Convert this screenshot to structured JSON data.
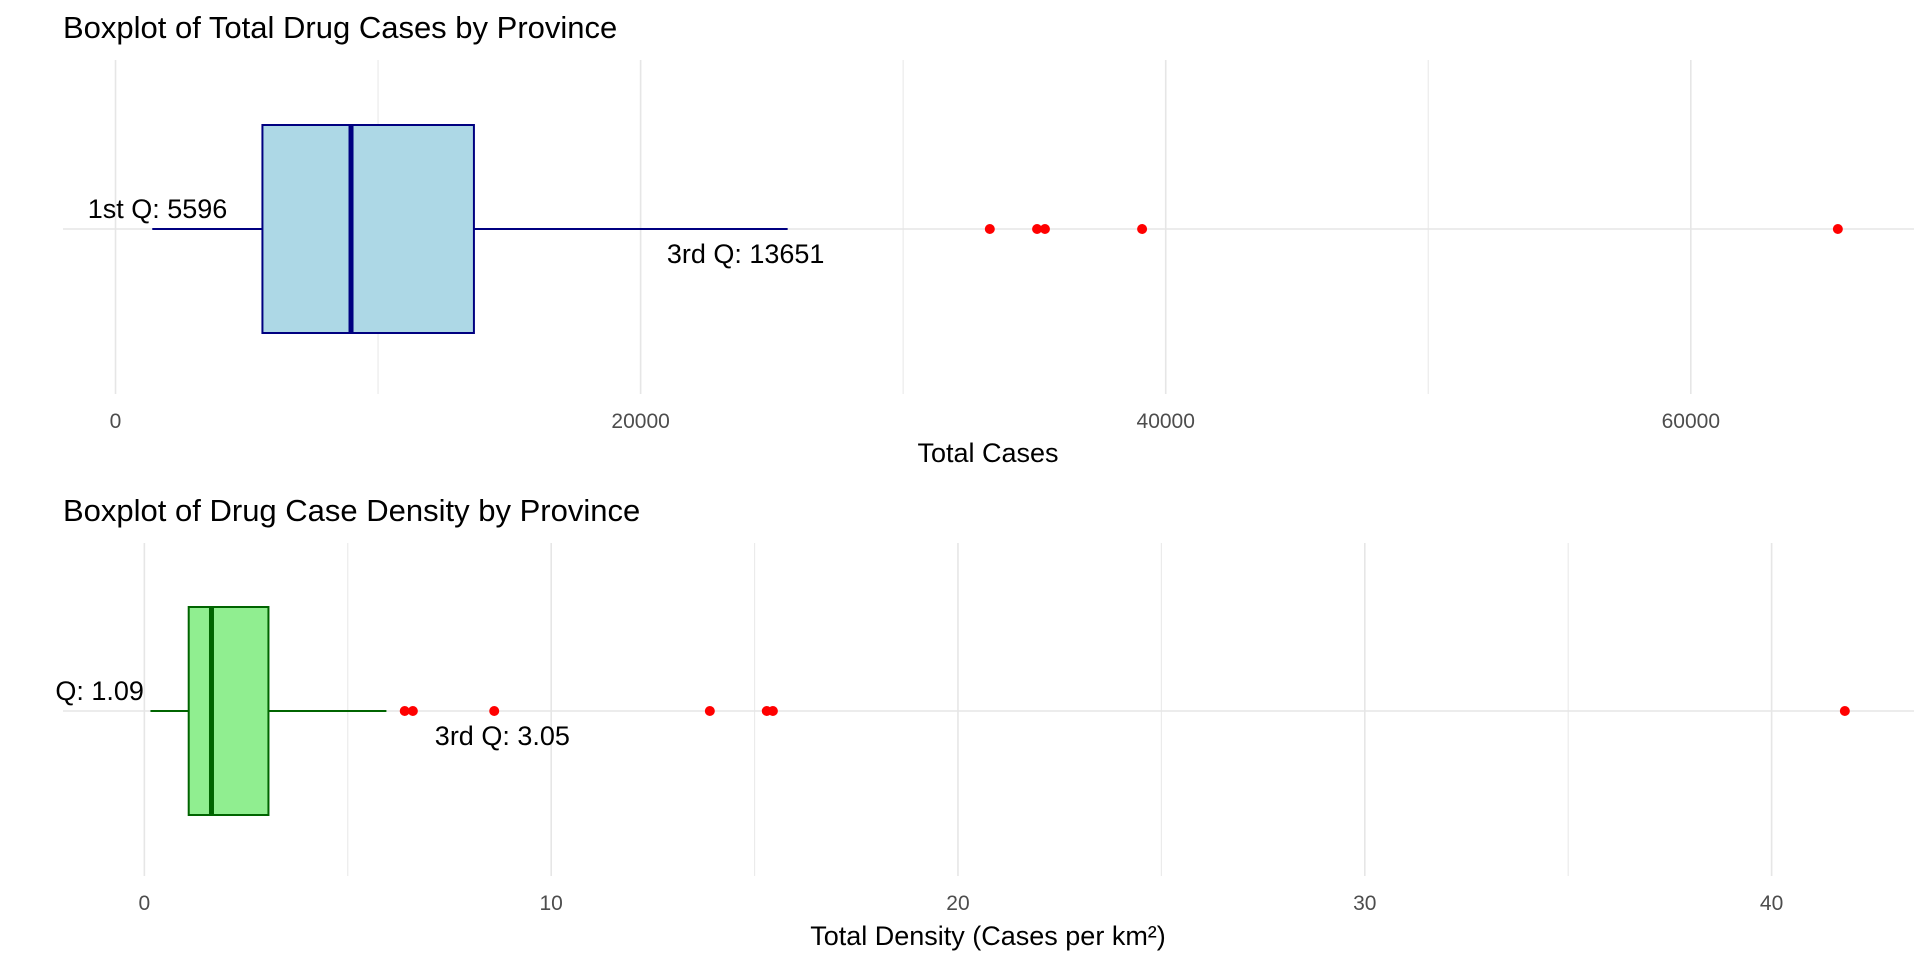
{
  "chart_data": [
    {
      "type": "boxplot",
      "title": "Boxplot of Total Drug Cases by Province",
      "xlabel": "Total Cases",
      "xlim": [
        -2000,
        68500
      ],
      "ticks": [
        0,
        20000,
        40000,
        60000
      ],
      "tick_labels": [
        "0",
        "20000",
        "40000",
        "60000"
      ],
      "grid": true,
      "box": {
        "min": 1400,
        "q1": 5596,
        "median": 8970,
        "q3": 13651,
        "max": 25600
      },
      "outliers": [
        33300,
        35100,
        35400,
        39100,
        65600
      ],
      "annotations": [
        {
          "text": "1st Q: 5596",
          "x": 1600,
          "anchor": "middle",
          "position": "above"
        },
        {
          "text": "3rd Q: 13651",
          "x": 24000,
          "anchor": "middle",
          "position": "below"
        }
      ],
      "colors": {
        "fill": "#add8e6",
        "stroke": "#000080",
        "outlier": "#ff0000"
      }
    },
    {
      "type": "boxplot",
      "title": "Boxplot of Drug Case Density by Province",
      "xlabel": "Total Density (Cases per km²)",
      "xlim": [
        -2.0,
        43.5
      ],
      "ticks": [
        0,
        10,
        20,
        30,
        40
      ],
      "tick_labels": [
        "0",
        "10",
        "20",
        "30",
        "40"
      ],
      "grid": true,
      "box": {
        "min": 0.15,
        "q1": 1.09,
        "median": 1.65,
        "q3": 3.05,
        "max": 5.95
      },
      "outliers": [
        6.4,
        6.6,
        8.6,
        13.9,
        15.3,
        15.45,
        41.8
      ],
      "annotations": [
        {
          "text": "Q: 1.09",
          "x": -1.1,
          "anchor": "middle",
          "position": "above"
        },
        {
          "text": "3rd Q: 3.05",
          "x": 8.8,
          "anchor": "middle",
          "position": "below"
        }
      ],
      "colors": {
        "fill": "#90ee90",
        "stroke": "#006400",
        "outlier": "#ff0000"
      }
    }
  ]
}
